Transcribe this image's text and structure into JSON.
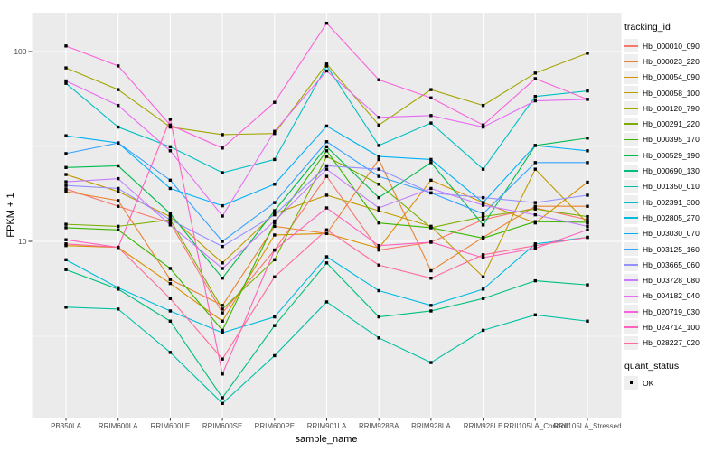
{
  "chart_data": {
    "type": "line",
    "title": "",
    "xlabel": "sample_name",
    "ylabel": "FPKM + 1",
    "y_scale": "log10",
    "ylim": [
      1.18,
      160
    ],
    "y_major_ticks": [
      100,
      10
    ],
    "y_minor_gridlines": [
      31.62,
      3.162
    ],
    "grid": "on",
    "panel_background": "#EBEBEB",
    "gridline_color": "#FFFFFF",
    "legend_position": "right",
    "legend_titles": {
      "color": "tracking_id",
      "shape": "quant_status"
    },
    "quant_status_values": [
      "OK"
    ],
    "point_shape": "filled-black-square",
    "categories": [
      "PB350LA",
      "RRIM600LA",
      "RRIM600LE",
      "RRIM600SE",
      "RRIM600PE",
      "RRIM901LA",
      "RRIM928BA",
      "RRIM928LA",
      "RRIM928LE",
      "RRII105LA_Control",
      "RRII105LA_Stressed"
    ],
    "series": [
      {
        "name": "Hb_000010_090",
        "color": "#F8766D",
        "values": [
          18.9,
          15.3,
          12.5,
          4.2,
          9.0,
          22,
          9.0,
          9.9,
          13.0,
          15.0,
          13.0
        ]
      },
      {
        "name": "Hb_000023_220",
        "color": "#EA8331",
        "values": [
          18.3,
          16.4,
          6.3,
          4.6,
          12.0,
          11.0,
          27.0,
          7.0,
          10.5,
          15.3,
          15.3
        ]
      },
      {
        "name": "Hb_000054_090",
        "color": "#D89000",
        "values": [
          9.5,
          9.3,
          6.0,
          3.8,
          10.8,
          11.0,
          9.2,
          21.0,
          16.0,
          12.5,
          20.5
        ]
      },
      {
        "name": "Hb_000058_100",
        "color": "#C09B00",
        "values": [
          22.5,
          18.3,
          13.5,
          7.7,
          14.0,
          17.5,
          14.5,
          12.0,
          6.5,
          24.0,
          12.5
        ]
      },
      {
        "name": "Hb_000120_790",
        "color": "#A3A500",
        "values": [
          82,
          63,
          40,
          36.5,
          37,
          86,
          41,
          63,
          52,
          77,
          98
        ]
      },
      {
        "name": "Hb_000291_220",
        "color": "#7CAE00",
        "values": [
          12.3,
          12.0,
          13.0,
          4.4,
          8.0,
          28,
          20,
          11.8,
          13.5,
          14.8,
          13.5
        ]
      },
      {
        "name": "Hb_000395_170",
        "color": "#39B600",
        "values": [
          11.8,
          11.5,
          7.2,
          3.4,
          12.5,
          30,
          12.5,
          11.8,
          10.4,
          12.7,
          12.6
        ]
      },
      {
        "name": "Hb_000529_190",
        "color": "#00BB4E",
        "values": [
          24.5,
          25,
          14,
          6.4,
          14.5,
          31.5,
          17,
          26,
          12.2,
          32,
          35
        ]
      },
      {
        "name": "Hb_000690_130",
        "color": "#00BF7D",
        "values": [
          7.1,
          5.6,
          3.8,
          1.5,
          3.6,
          7.7,
          4.0,
          4.3,
          5.0,
          6.2,
          5.9
        ]
      },
      {
        "name": "Hb_001350_010",
        "color": "#00C1A3",
        "values": [
          4.5,
          4.4,
          2.6,
          1.4,
          2.5,
          4.8,
          3.1,
          2.3,
          3.4,
          4.1,
          3.8
        ]
      },
      {
        "name": "Hb_002391_300",
        "color": "#00BFC4",
        "values": [
          68,
          40,
          31.5,
          23,
          27,
          84,
          32,
          42,
          24,
          58,
          62
        ]
      },
      {
        "name": "Hb_002805_270",
        "color": "#00BAE0",
        "values": [
          8.0,
          5.7,
          4.3,
          3.3,
          4.0,
          8.3,
          5.5,
          4.6,
          5.6,
          9.7,
          10.5
        ]
      },
      {
        "name": "Hb_003030_070",
        "color": "#00B0F6",
        "values": [
          36,
          33,
          19,
          15.4,
          20,
          40.5,
          28,
          27,
          16,
          32,
          30
        ]
      },
      {
        "name": "Hb_003125_160",
        "color": "#35A2FF",
        "values": [
          29,
          33,
          21,
          10,
          16,
          33.5,
          22,
          18,
          14,
          26,
          26
        ]
      },
      {
        "name": "Hb_003665_060",
        "color": "#9590FF",
        "values": [
          19.7,
          19,
          13,
          9.4,
          13.8,
          25,
          24,
          18,
          17,
          16,
          17.5
        ]
      },
      {
        "name": "Hb_003728_080",
        "color": "#C77CFF",
        "values": [
          20.6,
          21.4,
          12.2,
          7.2,
          12.8,
          24,
          15,
          19,
          15.5,
          13.8,
          12.0
        ]
      },
      {
        "name": "Hb_004182_040",
        "color": "#E76BF3",
        "values": [
          70,
          52,
          30,
          13.6,
          38,
          79,
          45,
          46,
          40,
          55,
          56
        ]
      },
      {
        "name": "Hb_020719_030",
        "color": "#FA62DB",
        "values": [
          107,
          84,
          41,
          31,
          54,
          141,
          71,
          57,
          41,
          72,
          56
        ]
      },
      {
        "name": "Hb_024714_100",
        "color": "#FF62BC",
        "values": [
          10.2,
          9.3,
          44,
          2.0,
          9.0,
          15,
          9.5,
          9.9,
          8.2,
          9.2,
          11.5
        ]
      },
      {
        "name": "Hb_028227_020",
        "color": "#FF6A98",
        "values": [
          9.7,
          9.3,
          5.0,
          2.4,
          6.5,
          11.5,
          7.5,
          6.4,
          8.5,
          9.5,
          10.5
        ]
      }
    ]
  }
}
